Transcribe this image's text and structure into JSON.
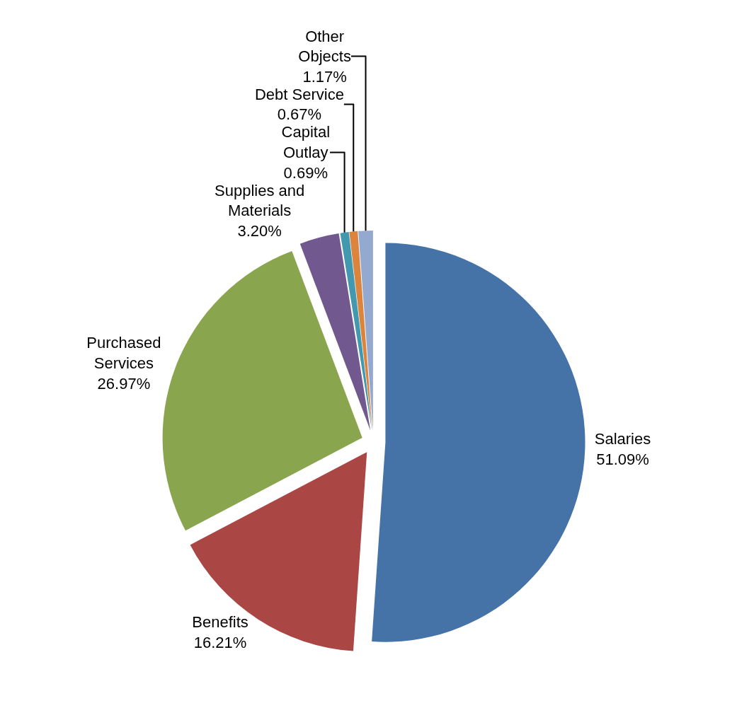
{
  "chart_data": {
    "type": "pie",
    "categories": [
      "Salaries",
      "Benefits",
      "Purchased Services",
      "Supplies and Materials",
      "Capital Outlay",
      "Debt Service",
      "Other Objects"
    ],
    "values": [
      51.09,
      16.21,
      26.97,
      3.2,
      0.69,
      0.67,
      1.17
    ],
    "value_labels": [
      "51.09%",
      "16.21%",
      "26.97%",
      "3.20%",
      "0.69%",
      "0.67%",
      "1.17%"
    ],
    "colors": [
      "#4572a7",
      "#aa4643",
      "#89a54e",
      "#71588f",
      "#4198af",
      "#db843d",
      "#93a9cf"
    ],
    "legend": false
  }
}
